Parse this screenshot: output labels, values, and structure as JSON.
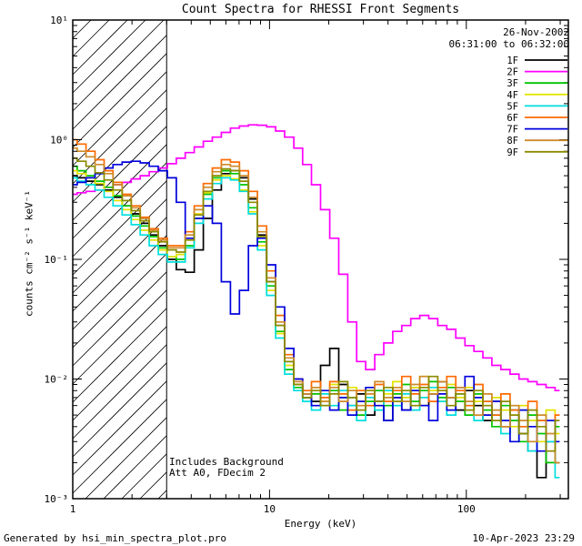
{
  "title": "Count Spectra for RHESSI Front Segments",
  "annotations": {
    "date": "26-Nov-2002",
    "time_range": "06:31:00 to 06:32:00",
    "background_note": "Includes Background",
    "attenuator_note": "Att A0, FDecim 2"
  },
  "footer": {
    "generator": "Generated by hsi_min_spectra_plot.pro",
    "timestamp": "10-Apr-2023 23:29"
  },
  "chart_data": {
    "type": "line",
    "title": "Count Spectra for RHESSI Front Segments",
    "xlabel": "Energy (keV)",
    "ylabel": "counts cm⁻² s⁻¹ keV⁻¹",
    "xscale": "log",
    "yscale": "log",
    "xlim": [
      1,
      330
    ],
    "ylim": [
      0.001,
      10
    ],
    "grid": false,
    "step_mode": true,
    "legend_position": "top-right-inside",
    "x_ticks": [
      {
        "value": 1,
        "label": "1"
      },
      {
        "value": 10,
        "label": "10"
      },
      {
        "value": 100,
        "label": "100"
      }
    ],
    "y_ticks": [
      {
        "value": 10,
        "label": "10¹"
      },
      {
        "value": 1,
        "label": "10⁰"
      },
      {
        "value": 0.1,
        "label": "10⁻¹"
      },
      {
        "value": 0.01,
        "label": "10⁻²"
      },
      {
        "value": 0.001,
        "label": "10⁻³"
      }
    ],
    "hatched_region": {
      "x_start": 1,
      "x_end": 3
    },
    "x": [
      1.0,
      1.11,
      1.23,
      1.37,
      1.52,
      1.69,
      1.88,
      2.09,
      2.32,
      2.58,
      2.87,
      3.19,
      3.54,
      3.93,
      4.37,
      4.86,
      5.4,
      6.0,
      6.67,
      7.41,
      8.23,
      9.15,
      10.2,
      11.3,
      12.6,
      14.0,
      15.5,
      17.2,
      19.2,
      21.3,
      23.7,
      26.3,
      29.2,
      32.5,
      36.1,
      40.1,
      44.6,
      49.5,
      55.0,
      61.1,
      67.9,
      75.5,
      83.9,
      93.2,
      104,
      115,
      128,
      142,
      158,
      176,
      195,
      217,
      241,
      268,
      298
    ],
    "series": [
      {
        "name": "1F",
        "color": "#000000",
        "values": [
          0.5,
          0.48,
          0.45,
          0.42,
          0.38,
          0.33,
          0.28,
          0.24,
          0.2,
          0.16,
          0.13,
          0.1,
          0.082,
          0.078,
          0.12,
          0.22,
          0.38,
          0.52,
          0.55,
          0.48,
          0.32,
          0.16,
          0.065,
          0.028,
          0.014,
          0.009,
          0.007,
          0.0065,
          0.013,
          0.018,
          0.009,
          0.006,
          0.0075,
          0.005,
          0.0065,
          0.0045,
          0.007,
          0.0055,
          0.0085,
          0.006,
          0.0075,
          0.0095,
          0.007,
          0.0055,
          0.008,
          0.006,
          0.0045,
          0.0065,
          0.004,
          0.0055,
          0.0035,
          0.0025,
          0.0015,
          0.003,
          0.002
        ]
      },
      {
        "name": "2F",
        "color": "#ff00ff",
        "values": [
          0.35,
          0.36,
          0.37,
          0.38,
          0.4,
          0.42,
          0.44,
          0.47,
          0.5,
          0.54,
          0.58,
          0.63,
          0.7,
          0.78,
          0.87,
          0.97,
          1.05,
          1.15,
          1.25,
          1.3,
          1.33,
          1.32,
          1.28,
          1.18,
          1.05,
          0.85,
          0.62,
          0.42,
          0.26,
          0.15,
          0.075,
          0.03,
          0.014,
          0.012,
          0.016,
          0.02,
          0.025,
          0.028,
          0.032,
          0.034,
          0.032,
          0.028,
          0.026,
          0.022,
          0.019,
          0.017,
          0.015,
          0.013,
          0.012,
          0.011,
          0.01,
          0.0095,
          0.009,
          0.0085,
          0.008
        ]
      },
      {
        "name": "3F",
        "color": "#00c400",
        "values": [
          0.6,
          0.55,
          0.5,
          0.45,
          0.4,
          0.34,
          0.28,
          0.23,
          0.19,
          0.155,
          0.125,
          0.105,
          0.1,
          0.13,
          0.22,
          0.35,
          0.48,
          0.55,
          0.52,
          0.42,
          0.27,
          0.14,
          0.06,
          0.025,
          0.012,
          0.0085,
          0.007,
          0.0075,
          0.006,
          0.008,
          0.0055,
          0.007,
          0.005,
          0.0065,
          0.008,
          0.006,
          0.0075,
          0.009,
          0.0065,
          0.008,
          0.0095,
          0.007,
          0.0085,
          0.0065,
          0.005,
          0.0075,
          0.0055,
          0.004,
          0.006,
          0.0045,
          0.003,
          0.005,
          0.0035,
          0.002,
          0.004
        ]
      },
      {
        "name": "4F",
        "color": "#e3e300",
        "values": [
          0.55,
          0.52,
          0.48,
          0.43,
          0.37,
          0.31,
          0.26,
          0.215,
          0.175,
          0.145,
          0.12,
          0.105,
          0.11,
          0.15,
          0.24,
          0.36,
          0.46,
          0.5,
          0.47,
          0.38,
          0.25,
          0.13,
          0.055,
          0.024,
          0.013,
          0.009,
          0.0075,
          0.0085,
          0.0065,
          0.009,
          0.007,
          0.0085,
          0.0065,
          0.008,
          0.006,
          0.0075,
          0.0095,
          0.007,
          0.0085,
          0.0105,
          0.008,
          0.0065,
          0.009,
          0.007,
          0.0085,
          0.0065,
          0.005,
          0.007,
          0.0055,
          0.004,
          0.006,
          0.0045,
          0.003,
          0.0055,
          0.0035
        ]
      },
      {
        "name": "5F",
        "color": "#00dede",
        "values": [
          0.48,
          0.45,
          0.42,
          0.38,
          0.33,
          0.28,
          0.235,
          0.195,
          0.16,
          0.13,
          0.11,
          0.095,
          0.095,
          0.125,
          0.2,
          0.32,
          0.43,
          0.48,
          0.46,
          0.37,
          0.24,
          0.12,
          0.05,
          0.022,
          0.011,
          0.008,
          0.0065,
          0.0055,
          0.0075,
          0.006,
          0.008,
          0.006,
          0.0045,
          0.007,
          0.0055,
          0.008,
          0.006,
          0.0075,
          0.0055,
          0.007,
          0.0085,
          0.0065,
          0.005,
          0.0075,
          0.006,
          0.0045,
          0.0065,
          0.005,
          0.0035,
          0.0055,
          0.004,
          0.0025,
          0.0045,
          0.003,
          0.0015
        ]
      },
      {
        "name": "6F",
        "color": "#ff6a00",
        "values": [
          1.0,
          0.92,
          0.8,
          0.68,
          0.55,
          0.44,
          0.35,
          0.28,
          0.225,
          0.18,
          0.15,
          0.13,
          0.13,
          0.17,
          0.28,
          0.43,
          0.58,
          0.68,
          0.65,
          0.55,
          0.37,
          0.19,
          0.08,
          0.034,
          0.016,
          0.01,
          0.008,
          0.0095,
          0.007,
          0.0095,
          0.0075,
          0.0055,
          0.008,
          0.006,
          0.009,
          0.0065,
          0.008,
          0.0105,
          0.0075,
          0.009,
          0.0065,
          0.0085,
          0.0105,
          0.008,
          0.006,
          0.009,
          0.0065,
          0.005,
          0.0075,
          0.0055,
          0.004,
          0.0065,
          0.0045,
          0.0025,
          0.005
        ]
      },
      {
        "name": "7F",
        "color": "#0000dd",
        "values": [
          0.42,
          0.44,
          0.48,
          0.52,
          0.58,
          0.62,
          0.65,
          0.66,
          0.64,
          0.6,
          0.55,
          0.48,
          0.3,
          0.15,
          0.22,
          0.28,
          0.2,
          0.065,
          0.035,
          0.055,
          0.13,
          0.15,
          0.09,
          0.04,
          0.018,
          0.01,
          0.0075,
          0.006,
          0.008,
          0.0055,
          0.007,
          0.005,
          0.0065,
          0.0085,
          0.006,
          0.0045,
          0.007,
          0.0055,
          0.008,
          0.006,
          0.0045,
          0.0075,
          0.0055,
          0.0085,
          0.0105,
          0.007,
          0.005,
          0.0065,
          0.0045,
          0.003,
          0.0055,
          0.004,
          0.0025,
          0.0045,
          0.003
        ]
      },
      {
        "name": "8F",
        "color": "#cd8a2a",
        "values": [
          0.85,
          0.8,
          0.72,
          0.62,
          0.52,
          0.42,
          0.34,
          0.27,
          0.22,
          0.175,
          0.145,
          0.125,
          0.125,
          0.16,
          0.26,
          0.4,
          0.54,
          0.62,
          0.6,
          0.5,
          0.33,
          0.17,
          0.07,
          0.03,
          0.015,
          0.0095,
          0.0075,
          0.0085,
          0.0065,
          0.0085,
          0.0065,
          0.008,
          0.006,
          0.0075,
          0.0095,
          0.007,
          0.0085,
          0.0065,
          0.009,
          0.0105,
          0.0075,
          0.0095,
          0.007,
          0.0085,
          0.0065,
          0.005,
          0.0075,
          0.0055,
          0.004,
          0.006,
          0.0045,
          0.003,
          0.005,
          0.0035,
          0.002
        ]
      },
      {
        "name": "9F",
        "color": "#8b8b00",
        "values": [
          0.7,
          0.66,
          0.6,
          0.53,
          0.46,
          0.38,
          0.31,
          0.255,
          0.21,
          0.17,
          0.14,
          0.12,
          0.115,
          0.145,
          0.235,
          0.37,
          0.5,
          0.57,
          0.55,
          0.45,
          0.3,
          0.155,
          0.065,
          0.028,
          0.014,
          0.009,
          0.007,
          0.008,
          0.006,
          0.0075,
          0.0095,
          0.007,
          0.0055,
          0.008,
          0.0065,
          0.0085,
          0.0065,
          0.008,
          0.006,
          0.0085,
          0.0105,
          0.008,
          0.006,
          0.0075,
          0.0055,
          0.008,
          0.006,
          0.0045,
          0.0065,
          0.005,
          0.0035,
          0.0055,
          0.004,
          0.0025,
          0.0045
        ]
      }
    ]
  }
}
